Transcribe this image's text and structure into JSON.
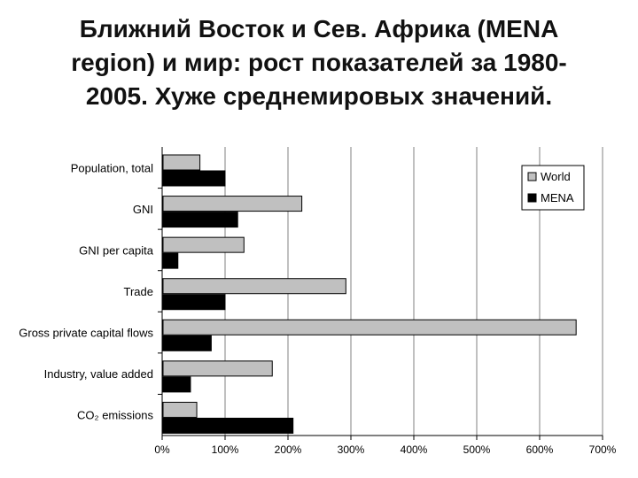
{
  "title_lines": [
    "Ближний Восток и Сев. Африка (MENA",
    "region) и мир: рост показателей за 1980-",
    "2005. Хуже среднемировых значений."
  ],
  "colors": {
    "world": "#c0c0c0",
    "mena": "#000000",
    "grid": "#808080"
  },
  "chart_data": {
    "type": "bar",
    "orientation": "horizontal",
    "categories": [
      "Population, total",
      "GNI",
      "GNI per capita",
      "Trade",
      "Gross private capital flows",
      "Industry, value added",
      "CO₂ emissions"
    ],
    "series": [
      {
        "name": "World",
        "values": [
          60,
          222,
          130,
          292,
          658,
          175,
          55
        ]
      },
      {
        "name": "MENA",
        "values": [
          100,
          120,
          25,
          100,
          78,
          45,
          208
        ]
      }
    ],
    "xlim": [
      0,
      700
    ],
    "xticks": [
      "0%",
      "100%",
      "200%",
      "300%",
      "400%",
      "500%",
      "600%",
      "700%"
    ],
    "grid": true,
    "legend_position": "top-right"
  }
}
